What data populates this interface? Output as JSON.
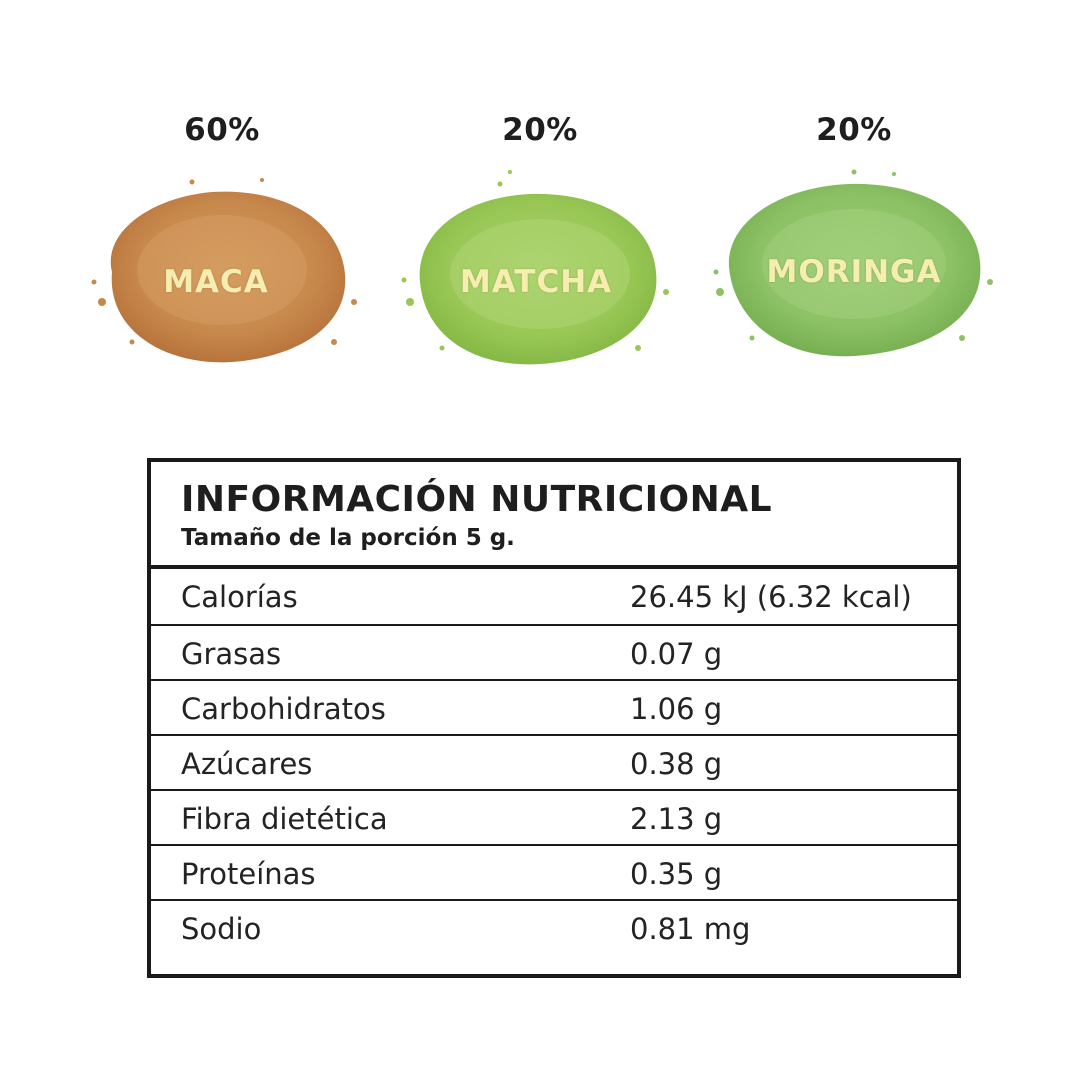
{
  "ingredients": [
    {
      "percent": "60%",
      "name": "MACA",
      "color": "#c98a4e"
    },
    {
      "percent": "20%",
      "name": "MATCHA",
      "color": "#9ccb5a"
    },
    {
      "percent": "20%",
      "name": "MORINGA",
      "color": "#8cc165"
    }
  ],
  "nutrition": {
    "title": "INFORMACIÓN NUTRICIONAL",
    "serving": "Tamaño de la porción 5 g.",
    "rows": [
      {
        "label": "Calorías",
        "value": "26.45 kJ (6.32 kcal)"
      },
      {
        "label": "Grasas",
        "value": "0.07 g"
      },
      {
        "label": "Carbohidratos",
        "value": "1.06 g"
      },
      {
        "label": "Azúcares",
        "value": "0.38 g"
      },
      {
        "label": "Fibra dietética",
        "value": "2.13 g"
      },
      {
        "label": "Proteínas",
        "value": "0.35 g"
      },
      {
        "label": "Sodio",
        "value": "0.81 mg"
      }
    ]
  },
  "colors": {
    "text": "#1e1e1e",
    "border": "#1a1a1a",
    "label_on_powder": "#f6eeb0"
  }
}
